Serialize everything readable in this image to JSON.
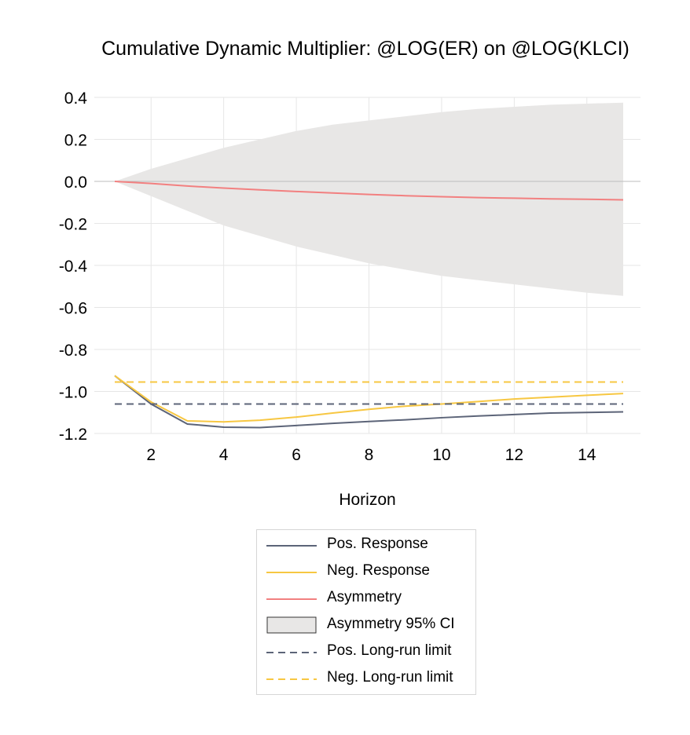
{
  "chart_data": {
    "type": "line",
    "title": "Cumulative Dynamic Multiplier: @LOG(ER) on @LOG(KLCI)",
    "xlabel": "Horizon",
    "ylabel": "",
    "xlim": [
      1,
      15
    ],
    "ylim": [
      -1.2,
      0.4
    ],
    "x_ticks": [
      2,
      4,
      6,
      8,
      10,
      12,
      14
    ],
    "x_tick_labels": [
      "2",
      "4",
      "6",
      "8",
      "10",
      "12",
      "14"
    ],
    "y_ticks": [
      0.4,
      0.2,
      0.0,
      -0.2,
      -0.4,
      -0.6,
      -0.8,
      -1.0,
      -1.2
    ],
    "y_tick_labels": [
      "0.4",
      "0.2",
      "0.0",
      "-0.2",
      "-0.4",
      "-0.6",
      "-0.8",
      "-1.0",
      "-1.2"
    ],
    "grid": true,
    "legend_position": "bottom",
    "x": [
      1,
      2,
      3,
      4,
      5,
      6,
      7,
      8,
      9,
      10,
      11,
      12,
      13,
      14,
      15
    ],
    "series": [
      {
        "name": "Pos. Response",
        "color": "#5c6478",
        "style": "solid",
        "values": [
          -0.925,
          -1.06,
          -1.155,
          -1.17,
          -1.172,
          -1.162,
          -1.152,
          -1.143,
          -1.135,
          -1.125,
          -1.117,
          -1.11,
          -1.103,
          -1.1,
          -1.097
        ]
      },
      {
        "name": "Neg. Response",
        "color": "#f7c742",
        "style": "solid",
        "values": [
          -0.925,
          -1.05,
          -1.14,
          -1.145,
          -1.137,
          -1.122,
          -1.103,
          -1.085,
          -1.07,
          -1.06,
          -1.048,
          -1.036,
          -1.027,
          -1.018,
          -1.01
        ]
      },
      {
        "name": "Asymmetry",
        "color": "#f28080",
        "style": "solid",
        "values": [
          0.0,
          -0.01,
          -0.022,
          -0.032,
          -0.04,
          -0.048,
          -0.055,
          -0.062,
          -0.068,
          -0.073,
          -0.077,
          -0.08,
          -0.083,
          -0.085,
          -0.088
        ]
      },
      {
        "name": "Pos. Long-run limit",
        "color": "#5c6478",
        "style": "dashed",
        "values": [
          -1.06,
          -1.06,
          -1.06,
          -1.06,
          -1.06,
          -1.06,
          -1.06,
          -1.06,
          -1.06,
          -1.06,
          -1.06,
          -1.06,
          -1.06,
          -1.06,
          -1.06
        ]
      },
      {
        "name": "Neg. Long-run limit",
        "color": "#f7c742",
        "style": "dashed",
        "values": [
          -0.955,
          -0.955,
          -0.955,
          -0.955,
          -0.955,
          -0.955,
          -0.955,
          -0.955,
          -0.955,
          -0.955,
          -0.955,
          -0.955,
          -0.955,
          -0.955,
          -0.955
        ]
      }
    ],
    "band": {
      "name": "Asymmetry 95% CI",
      "color": "#e8e7e6",
      "upper": [
        0.0,
        0.06,
        0.11,
        0.16,
        0.2,
        0.24,
        0.27,
        0.29,
        0.31,
        0.33,
        0.345,
        0.355,
        0.365,
        0.37,
        0.375
      ],
      "lower": [
        0.0,
        -0.07,
        -0.14,
        -0.21,
        -0.26,
        -0.31,
        -0.35,
        -0.39,
        -0.42,
        -0.45,
        -0.47,
        -0.49,
        -0.51,
        -0.53,
        -0.545
      ]
    }
  },
  "legend": {
    "items": [
      {
        "label": "Pos. Response",
        "kind": "line",
        "color": "#5c6478"
      },
      {
        "label": "Neg. Response",
        "kind": "line",
        "color": "#f7c742"
      },
      {
        "label": "Asymmetry",
        "kind": "line",
        "color": "#f28080"
      },
      {
        "label": "Asymmetry 95% CI",
        "kind": "box",
        "color": "#e8e7e6"
      },
      {
        "label": "Pos. Long-run limit",
        "kind": "dash",
        "color": "#5c6478"
      },
      {
        "label": "Neg. Long-run limit",
        "kind": "dash",
        "color": "#f7c742"
      }
    ]
  }
}
